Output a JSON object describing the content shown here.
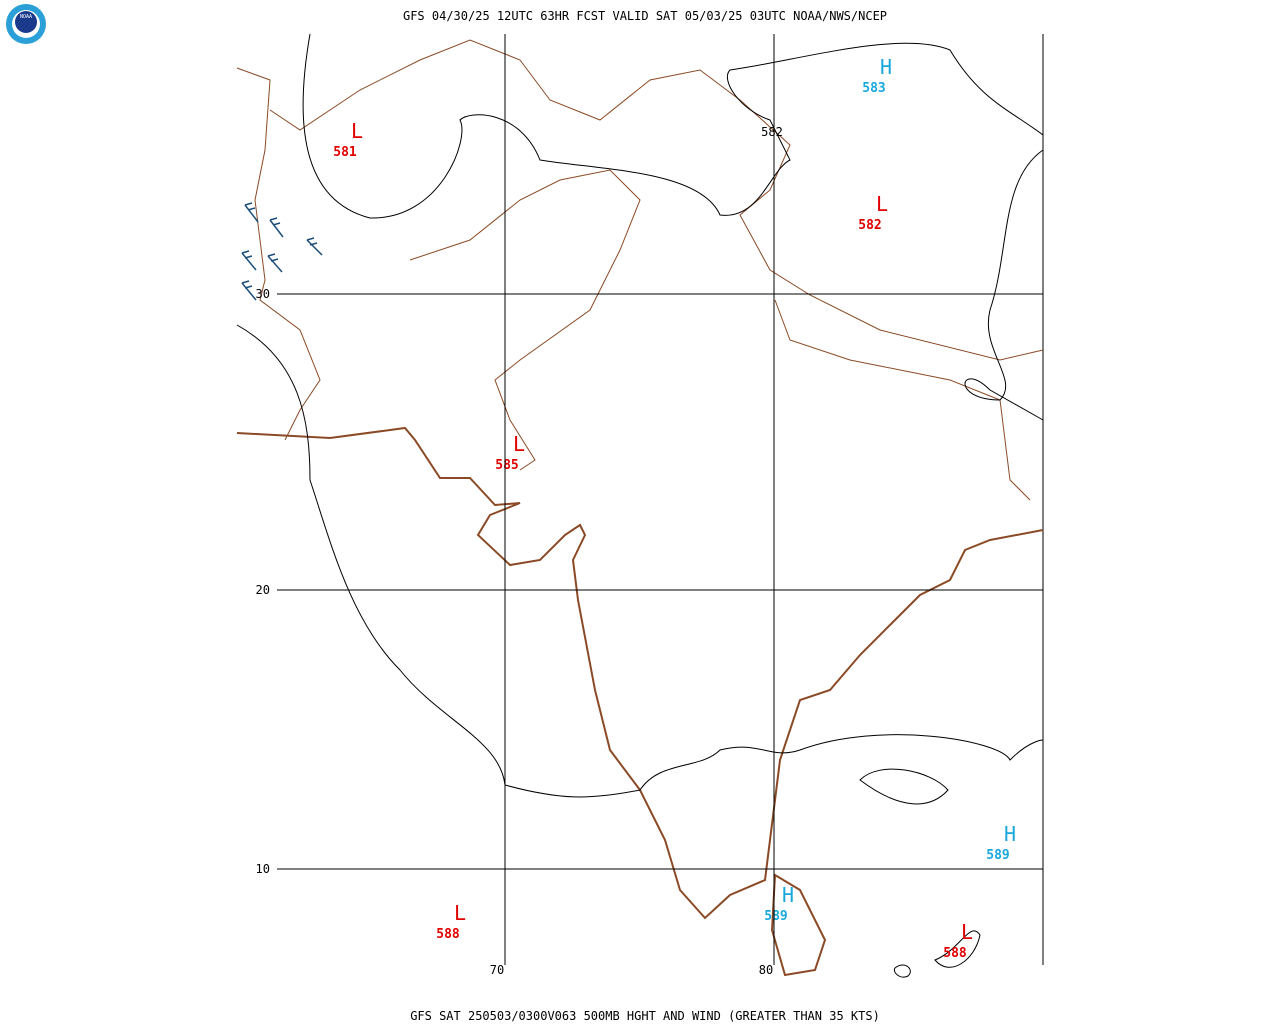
{
  "header": {
    "title": "GFS 04/30/25 12UTC 63HR FCST VALID SAT 05/03/25 03UTC NOAA/NWS/NCEP"
  },
  "footer": {
    "caption": "GFS SAT 250503/0300V063 500MB HGHT AND WIND (GREATER THAN 35 KTS)"
  },
  "logo": {
    "text": "NOAA"
  },
  "lat_labels": [
    "30",
    "20",
    "10"
  ],
  "lon_labels": [
    "70",
    "80"
  ],
  "centers": [
    {
      "symbol": "L",
      "value": "581"
    },
    {
      "symbol": "H",
      "value": "583"
    },
    {
      "symbol": "L",
      "value": "582"
    },
    {
      "symbol": "L",
      "value": "585"
    },
    {
      "symbol": "H",
      "value": "589"
    },
    {
      "symbol": "H",
      "value": "589"
    },
    {
      "symbol": "L",
      "value": "588"
    },
    {
      "symbol": "L",
      "value": "588"
    }
  ],
  "contour_labels": [
    "582"
  ]
}
